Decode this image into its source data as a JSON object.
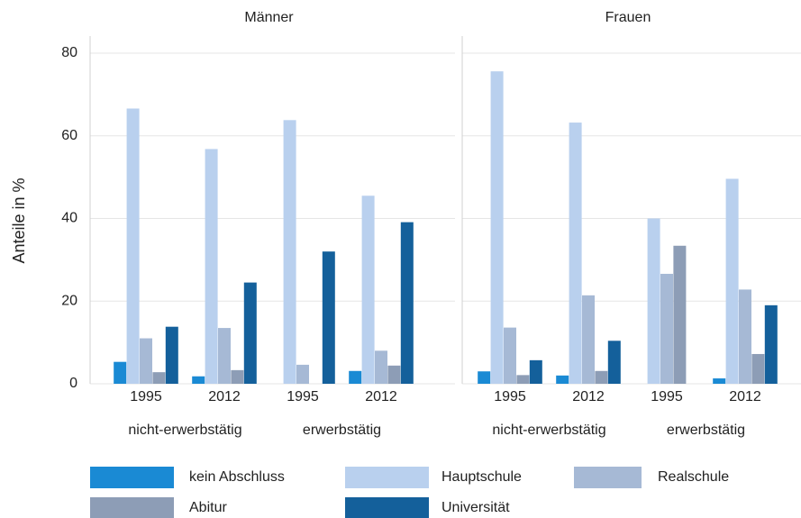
{
  "chart_data": {
    "type": "bar",
    "facets": [
      "Männer",
      "Frauen"
    ],
    "ylabel": "Anteile in %",
    "categories": [
      "1995",
      "2012",
      "1995",
      "2012",
      "1995",
      "2012",
      "1995",
      "2012"
    ],
    "groups": [
      "nicht-erwerbstätig",
      "erwerbstätig",
      "nicht-erwerbstätig",
      "erwerbstätig"
    ],
    "ylim": [
      0,
      80
    ],
    "yticks": [
      0,
      20,
      40,
      60,
      80
    ],
    "grid": true,
    "series": [
      {
        "name": "kein Abschluss",
        "color": "#1a8ad4",
        "values": [
          5.3,
          1.8,
          0,
          3.1,
          3,
          2,
          0,
          1.3
        ]
      },
      {
        "name": "Hauptschule",
        "color": "#b9d0ee",
        "values": [
          66.6,
          56.8,
          63.8,
          45.5,
          75.6,
          63.2,
          40,
          49.6
        ]
      },
      {
        "name": "Realschule",
        "color": "#a6b9d5",
        "values": [
          11,
          13.5,
          4.6,
          8,
          13.6,
          21.4,
          26.6,
          22.8
        ]
      },
      {
        "name": "Abitur",
        "color": "#8d9db6",
        "values": [
          2.8,
          3.3,
          0,
          4.4,
          2.1,
          3.1,
          33.4,
          7.2
        ]
      },
      {
        "name": "Universität",
        "color": "#14609b",
        "values": [
          13.8,
          24.5,
          32,
          39.1,
          5.7,
          10.4,
          0,
          19
        ]
      }
    ]
  }
}
